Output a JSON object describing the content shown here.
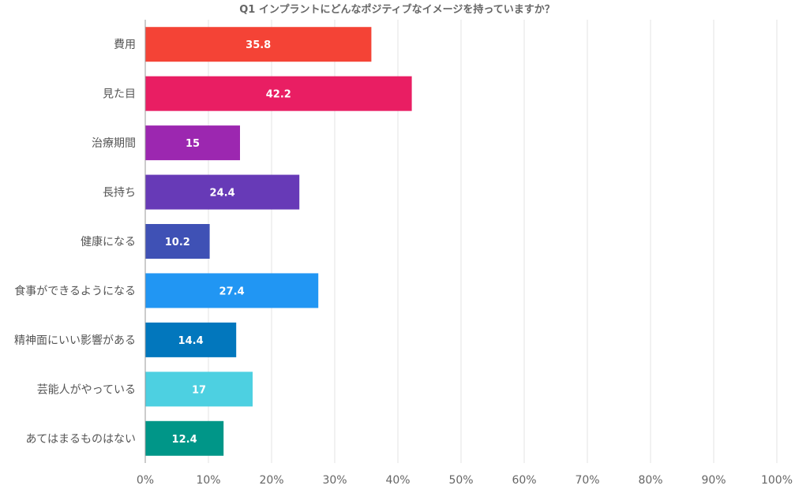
{
  "chart_data": {
    "type": "bar",
    "orientation": "horizontal",
    "title": "Q1 インプラントにどんなポジティブなイメージを持っていますか？",
    "categories": [
      "費用",
      "見た目",
      "治療期間",
      "長持ち",
      "健康になる",
      "食事ができるようになる",
      "精神面にいい影響がある",
      "芸能人がやっている",
      "あてはまるものはない"
    ],
    "values": [
      35.8,
      42.2,
      15,
      24.4,
      10.2,
      27.4,
      14.4,
      17,
      12.4
    ],
    "value_labels": [
      "35.8",
      "42.2",
      "15",
      "24.4",
      "10.2",
      "27.4",
      "14.4",
      "17",
      "12.4"
    ],
    "colors": [
      "#f44336",
      "#e91e63",
      "#9c27b0",
      "#673ab7",
      "#3f51b5",
      "#2196f3",
      "#0277bd",
      "#4dd0e1",
      "#009688"
    ],
    "xlim": [
      0,
      100
    ],
    "xticks": [
      0,
      10,
      20,
      30,
      40,
      50,
      60,
      70,
      80,
      90,
      100
    ],
    "xtick_labels": [
      "0%",
      "10%",
      "20%",
      "30%",
      "40%",
      "50%",
      "60%",
      "70%",
      "80%",
      "90%",
      "100%"
    ],
    "xlabel": "",
    "ylabel": "",
    "grid": true
  }
}
